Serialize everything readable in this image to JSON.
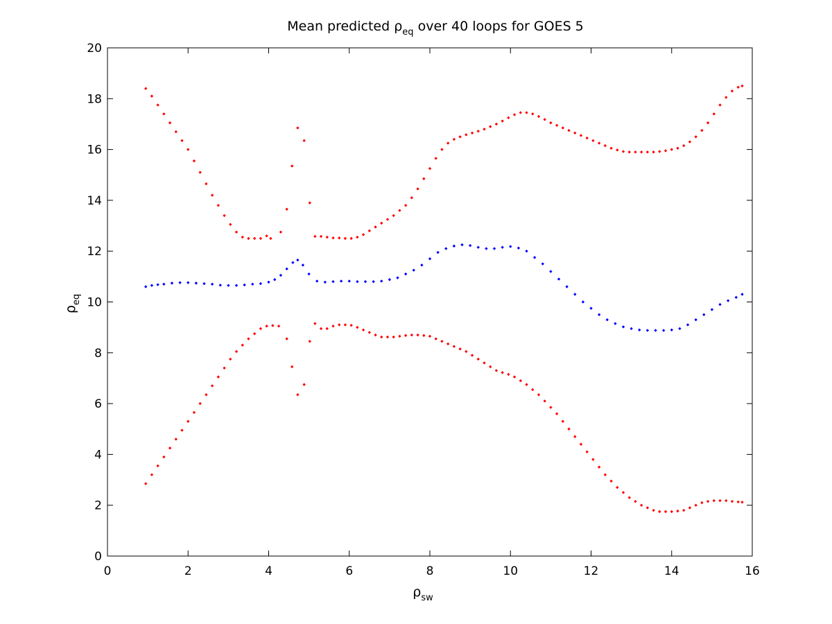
{
  "chart_data": {
    "type": "scatter",
    "title": {
      "prefix": "Mean predicted ",
      "symbol": "ρ",
      "sub": "eq",
      "suffix": " over 40 loops for GOES 5"
    },
    "xlabel": {
      "symbol": "ρ",
      "sub": "sw"
    },
    "ylabel": {
      "symbol": "ρ",
      "sub": "eq"
    },
    "xlim": [
      0,
      16
    ],
    "ylim": [
      0,
      20
    ],
    "xticks": [
      0,
      2,
      4,
      6,
      8,
      10,
      12,
      14,
      16
    ],
    "yticks": [
      0,
      2,
      4,
      6,
      8,
      10,
      12,
      14,
      16,
      18,
      20
    ],
    "grid": false,
    "series": [
      {
        "color": "#0000ff",
        "role": "mean",
        "x": [
          0.95,
          1.1,
          1.25,
          1.4,
          1.6,
          1.8,
          2.0,
          2.2,
          2.4,
          2.6,
          2.8,
          3.0,
          3.2,
          3.4,
          3.6,
          3.8,
          4.0,
          4.15,
          4.3,
          4.45,
          4.6,
          4.72,
          4.85,
          5.0,
          5.2,
          5.4,
          5.6,
          5.8,
          6.0,
          6.2,
          6.4,
          6.6,
          6.8,
          7.0,
          7.2,
          7.4,
          7.6,
          7.8,
          8.0,
          8.2,
          8.4,
          8.6,
          8.8,
          9.0,
          9.2,
          9.4,
          9.6,
          9.8,
          10.0,
          10.2,
          10.4,
          10.6,
          10.8,
          11.0,
          11.2,
          11.4,
          11.6,
          11.8,
          12.0,
          12.2,
          12.4,
          12.6,
          12.8,
          13.0,
          13.2,
          13.4,
          13.6,
          13.8,
          14.0,
          14.2,
          14.4,
          14.6,
          14.8,
          15.0,
          15.2,
          15.4,
          15.6,
          15.75
        ],
        "y": [
          10.6,
          10.65,
          10.68,
          10.7,
          10.74,
          10.76,
          10.76,
          10.74,
          10.72,
          10.7,
          10.66,
          10.65,
          10.65,
          10.67,
          10.7,
          10.72,
          10.78,
          10.88,
          11.05,
          11.3,
          11.55,
          11.65,
          11.45,
          11.1,
          10.82,
          10.78,
          10.8,
          10.82,
          10.82,
          10.8,
          10.8,
          10.8,
          10.82,
          10.88,
          10.95,
          11.1,
          11.25,
          11.45,
          11.7,
          11.95,
          12.1,
          12.2,
          12.25,
          12.22,
          12.15,
          12.1,
          12.1,
          12.15,
          12.18,
          12.12,
          12.0,
          11.75,
          11.5,
          11.2,
          10.9,
          10.6,
          10.3,
          10.0,
          9.75,
          9.5,
          9.3,
          9.15,
          9.02,
          8.95,
          8.9,
          8.88,
          8.88,
          8.88,
          8.9,
          8.95,
          9.1,
          9.3,
          9.5,
          9.7,
          9.9,
          10.05,
          10.18,
          10.3
        ]
      },
      {
        "color": "#ff0000",
        "role": "upper",
        "x": [
          0.95,
          1.1,
          1.25,
          1.4,
          1.55,
          1.7,
          1.85,
          2.0,
          2.15,
          2.3,
          2.45,
          2.6,
          2.75,
          2.9,
          3.05,
          3.2,
          3.35,
          3.5,
          3.65,
          3.8,
          3.95,
          4.05,
          4.3,
          4.45,
          4.58,
          4.72,
          4.88,
          5.02,
          5.15,
          5.3,
          5.45,
          5.6,
          5.75,
          5.9,
          6.05,
          6.2,
          6.35,
          6.5,
          6.65,
          6.8,
          6.95,
          7.1,
          7.25,
          7.4,
          7.55,
          7.7,
          7.85,
          8.0,
          8.15,
          8.3,
          8.45,
          8.6,
          8.75,
          8.9,
          9.05,
          9.2,
          9.35,
          9.5,
          9.65,
          9.8,
          9.95,
          10.1,
          10.25,
          10.4,
          10.55,
          10.7,
          10.85,
          11.0,
          11.15,
          11.3,
          11.45,
          11.6,
          11.75,
          11.9,
          12.05,
          12.2,
          12.35,
          12.5,
          12.65,
          12.8,
          12.95,
          13.1,
          13.25,
          13.4,
          13.55,
          13.7,
          13.85,
          14.0,
          14.15,
          14.3,
          14.45,
          14.6,
          14.75,
          14.9,
          15.05,
          15.2,
          15.35,
          15.5,
          15.65,
          15.75
        ],
        "y": [
          18.4,
          18.1,
          17.75,
          17.4,
          17.05,
          16.7,
          16.35,
          16.0,
          15.55,
          15.1,
          14.65,
          14.2,
          13.8,
          13.4,
          13.05,
          12.75,
          12.55,
          12.5,
          12.5,
          12.5,
          12.6,
          12.5,
          12.75,
          13.65,
          15.35,
          16.85,
          16.35,
          13.9,
          12.58,
          12.58,
          12.55,
          12.52,
          12.52,
          12.5,
          12.5,
          12.55,
          12.65,
          12.8,
          12.95,
          13.1,
          13.25,
          13.4,
          13.6,
          13.8,
          14.1,
          14.45,
          14.85,
          15.25,
          15.65,
          16.0,
          16.25,
          16.4,
          16.5,
          16.58,
          16.65,
          16.72,
          16.8,
          16.9,
          17.0,
          17.12,
          17.25,
          17.37,
          17.45,
          17.45,
          17.4,
          17.3,
          17.18,
          17.05,
          16.95,
          16.85,
          16.75,
          16.65,
          16.55,
          16.45,
          16.35,
          16.25,
          16.15,
          16.05,
          15.98,
          15.92,
          15.9,
          15.9,
          15.9,
          15.9,
          15.9,
          15.92,
          15.95,
          16.0,
          16.05,
          16.15,
          16.3,
          16.5,
          16.75,
          17.05,
          17.4,
          17.75,
          18.05,
          18.3,
          18.45,
          18.5
        ]
      },
      {
        "color": "#ff0000",
        "role": "lower",
        "x": [
          0.95,
          1.1,
          1.25,
          1.4,
          1.55,
          1.7,
          1.85,
          2.0,
          2.15,
          2.3,
          2.45,
          2.6,
          2.75,
          2.9,
          3.05,
          3.2,
          3.35,
          3.5,
          3.65,
          3.8,
          3.95,
          4.1,
          4.25,
          4.45,
          4.58,
          4.72,
          4.88,
          5.02,
          5.15,
          5.3,
          5.45,
          5.6,
          5.75,
          5.9,
          6.05,
          6.2,
          6.35,
          6.5,
          6.65,
          6.8,
          6.95,
          7.1,
          7.25,
          7.4,
          7.55,
          7.7,
          7.85,
          8.0,
          8.15,
          8.3,
          8.45,
          8.6,
          8.75,
          8.9,
          9.05,
          9.2,
          9.35,
          9.5,
          9.65,
          9.8,
          9.95,
          10.1,
          10.25,
          10.4,
          10.55,
          10.7,
          10.85,
          11.0,
          11.15,
          11.3,
          11.45,
          11.6,
          11.75,
          11.9,
          12.05,
          12.2,
          12.35,
          12.5,
          12.65,
          12.8,
          12.95,
          13.1,
          13.25,
          13.4,
          13.55,
          13.7,
          13.85,
          14.0,
          14.15,
          14.3,
          14.45,
          14.6,
          14.75,
          14.9,
          15.05,
          15.2,
          15.35,
          15.5,
          15.65,
          15.75
        ],
        "y": [
          2.85,
          3.2,
          3.55,
          3.9,
          4.25,
          4.6,
          4.95,
          5.3,
          5.65,
          6.0,
          6.35,
          6.7,
          7.05,
          7.4,
          7.75,
          8.05,
          8.3,
          8.55,
          8.75,
          8.95,
          9.05,
          9.07,
          9.05,
          8.55,
          7.45,
          6.35,
          6.75,
          8.45,
          9.15,
          8.95,
          8.95,
          9.05,
          9.1,
          9.1,
          9.08,
          9.0,
          8.9,
          8.8,
          8.7,
          8.62,
          8.62,
          8.62,
          8.65,
          8.68,
          8.7,
          8.7,
          8.68,
          8.65,
          8.55,
          8.45,
          8.35,
          8.25,
          8.15,
          8.05,
          7.9,
          7.75,
          7.6,
          7.45,
          7.3,
          7.22,
          7.15,
          7.05,
          6.9,
          6.75,
          6.55,
          6.35,
          6.1,
          5.85,
          5.6,
          5.3,
          5.0,
          4.7,
          4.4,
          4.1,
          3.8,
          3.5,
          3.2,
          2.95,
          2.7,
          2.5,
          2.3,
          2.15,
          2.0,
          1.9,
          1.8,
          1.75,
          1.75,
          1.75,
          1.77,
          1.8,
          1.9,
          2.0,
          2.1,
          2.15,
          2.18,
          2.18,
          2.18,
          2.15,
          2.13,
          2.12
        ]
      }
    ]
  }
}
